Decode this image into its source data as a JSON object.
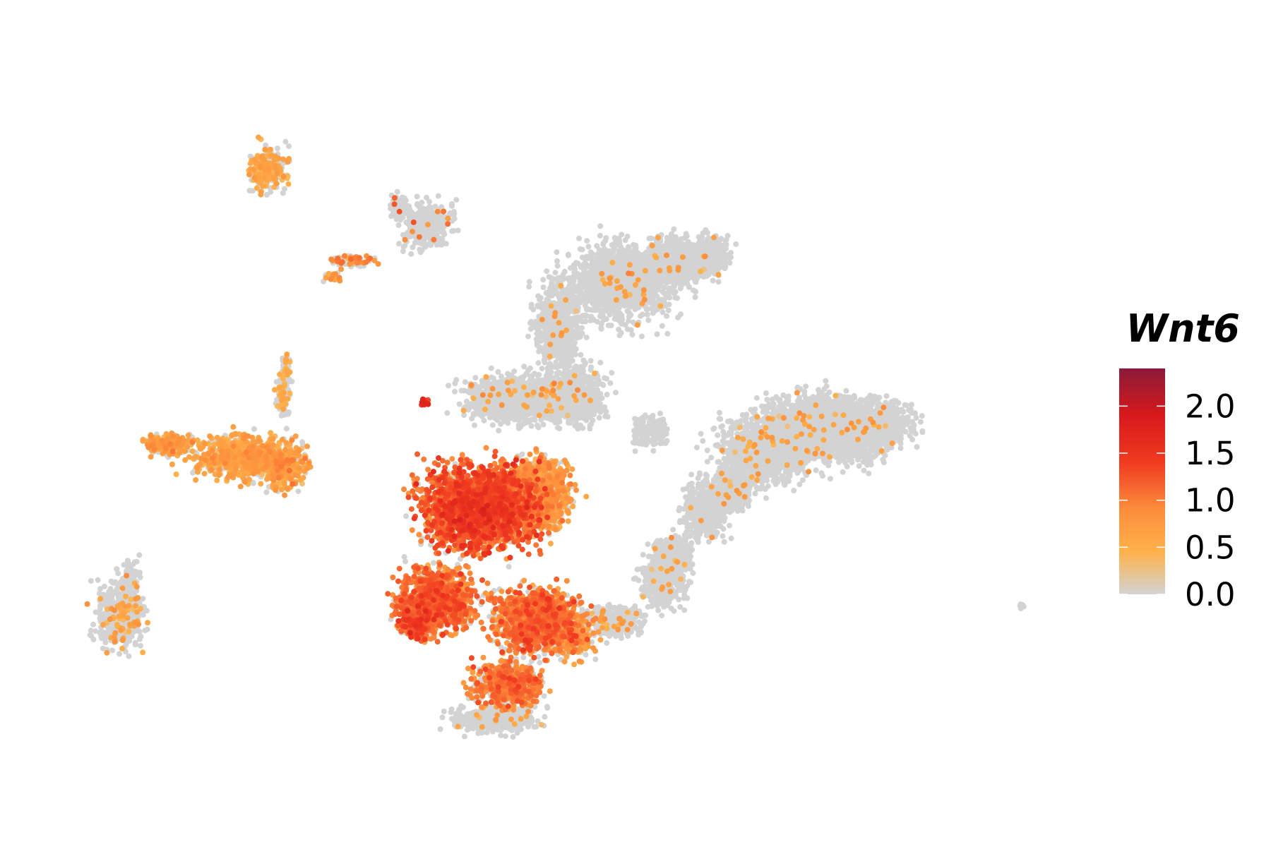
{
  "chart_data": {
    "type": "scatter",
    "title": "",
    "xlabel": "",
    "ylabel": "",
    "legend": {
      "title": "Wnt6",
      "placement": "right",
      "ticks": [
        "0.0",
        "0.5",
        "1.0",
        "1.5",
        "2.0"
      ],
      "tick_values": [
        0.0,
        0.5,
        1.0,
        1.5,
        2.0
      ],
      "range": [
        0.0,
        2.4
      ]
    },
    "colorscale": [
      {
        "value": 0.0,
        "color": "#d3d3d3"
      },
      {
        "value": 0.45,
        "color": "#feb24c"
      },
      {
        "value": 0.9,
        "color": "#fd8d3c"
      },
      {
        "value": 1.4,
        "color": "#f03b20"
      },
      {
        "value": 1.9,
        "color": "#d7191c"
      },
      {
        "value": 2.4,
        "color": "#8b1a3a"
      }
    ],
    "background_color": "#d3d3d3",
    "grid": false,
    "axes_visible": false
  }
}
